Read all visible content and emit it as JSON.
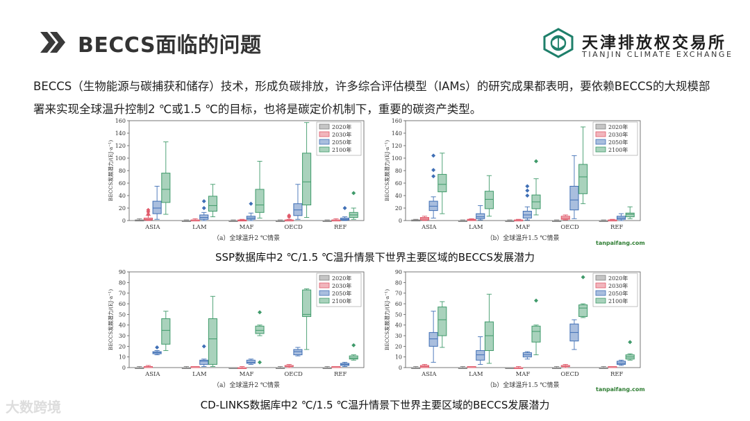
{
  "header": {
    "title": "BECCS面临的问题",
    "org_cn": "天津排放权交易所",
    "org_en": "TIANJIN CLIMATE EXCHANGE"
  },
  "intro": "BECCS（生物能源与碳捕获和储存）技术，形成负碳排放，许多综合评估模型（IAMs）的研究成果都表明，要依赖BECCS的大规模部署来实现全球温升控制2 ℃或1.5 ℃的目标，也将是碳定价机制下，重要的碳资产类型。",
  "captions": {
    "ssp": "SSP数据库中2 ℃/1.5 ℃温升情景下世界主要区域的BECCS发展潜力",
    "cdlinks": "CD-LINKS数据库中2 ℃/1.5 ℃温升情景下世界主要区域的BECCS发展潜力"
  },
  "watermark": "大数跨境",
  "site_mark": "tanpaifang.com",
  "colors": {
    "2020年": "#7f7f7f",
    "2030年": "#e05a6a",
    "2050年": "#3f6fb5",
    "2100年": "#3f9a6a"
  },
  "chart_data": [
    {
      "type": "box",
      "sublabel": "（a）全球温升2 ℃情景",
      "ylabel": "BECCS发展潜力/(EJ·a⁻¹)",
      "ylim": [
        0,
        160
      ],
      "yticks": [
        0,
        20,
        40,
        60,
        80,
        100,
        120,
        140,
        160
      ],
      "categories": [
        "ASIA",
        "LAM",
        "MAF",
        "OECD",
        "REF"
      ],
      "legend": [
        "2020年",
        "2030年",
        "2050年",
        "2100年"
      ],
      "series": [
        {
          "name": "2020年",
          "boxes": [
            [
              0,
              0,
              0,
              1,
              3
            ],
            [
              0,
              0,
              0,
              0,
              1
            ],
            [
              0,
              0,
              0,
              0,
              1
            ],
            [
              0,
              0,
              0,
              0,
              1
            ],
            [
              0,
              0,
              0,
              0,
              1
            ]
          ]
        },
        {
          "name": "2030年",
          "boxes": [
            [
              0,
              1,
              2,
              4,
              8
            ],
            [
              0,
              0,
              1,
              1,
              3
            ],
            [
              0,
              0,
              0,
              1,
              2
            ],
            [
              0,
              0,
              1,
              1,
              2
            ],
            [
              0,
              0,
              1,
              1,
              3
            ]
          ],
          "outliers": [
            [
              14,
              10,
              17
            ],
            [],
            [],
            [
              6,
              8
            ],
            []
          ]
        },
        {
          "name": "2050年",
          "boxes": [
            [
              2,
              11,
              20,
              31,
              55
            ],
            [
              0,
              2,
              5,
              9,
              13
            ],
            [
              0,
              2,
              4,
              7,
              12
            ],
            [
              2,
              8,
              17,
              27,
              58
            ],
            [
              0,
              1,
              2,
              4,
              6
            ]
          ],
          "outliers": [
            [],
            [
              20,
              31
            ],
            [
              27
            ],
            [],
            [
              20
            ]
          ]
        },
        {
          "name": "2100年",
          "boxes": [
            [
              10,
              29,
              50,
              76,
              126
            ],
            [
              6,
              15,
              24,
              39,
              58
            ],
            [
              4,
              13,
              25,
              50,
              95
            ],
            [
              5,
              25,
              62,
              108,
              157
            ],
            [
              2,
              5,
              9,
              13,
              20
            ]
          ],
          "outliers": [
            [],
            [],
            [],
            [],
            [
              44
            ]
          ]
        }
      ]
    },
    {
      "type": "box",
      "sublabel": "（b）全球温升1.5 ℃情景",
      "ylabel": "BECCS发展潜力/(EJ·a⁻¹)",
      "ylim": [
        0,
        160
      ],
      "yticks": [
        0,
        20,
        40,
        60,
        80,
        100,
        120,
        140,
        160
      ],
      "categories": [
        "ASIA",
        "LAM",
        "MAF",
        "OECD",
        "REF"
      ],
      "legend": [
        "2020年",
        "2030年",
        "2050年",
        "2100年"
      ],
      "series": [
        {
          "name": "2020年",
          "boxes": [
            [
              0,
              0,
              0,
              1,
              2
            ],
            [
              0,
              0,
              0,
              0,
              1
            ],
            [
              0,
              0,
              0,
              0,
              1
            ],
            [
              0,
              0,
              0,
              0,
              1
            ],
            [
              0,
              0,
              0,
              0,
              1
            ]
          ]
        },
        {
          "name": "2030年",
          "boxes": [
            [
              0,
              1,
              3,
              5,
              7
            ],
            [
              0,
              0,
              1,
              2,
              3
            ],
            [
              0,
              0,
              1,
              1,
              2
            ],
            [
              1,
              2,
              4,
              7,
              9
            ],
            [
              0,
              0,
              1,
              1,
              2
            ]
          ]
        },
        {
          "name": "2050年",
          "boxes": [
            [
              4,
              16,
              23,
              31,
              38
            ],
            [
              1,
              3,
              6,
              11,
              24
            ],
            [
              1,
              4,
              9,
              15,
              22
            ],
            [
              3,
              17,
              33,
              55,
              104
            ],
            [
              0,
              2,
              4,
              7,
              11
            ]
          ],
          "outliers": [
            [
              104,
              81,
              71
            ],
            [],
            [
              55,
              48,
              40
            ],
            [],
            []
          ]
        },
        {
          "name": "2100年",
          "boxes": [
            [
              11,
              46,
              58,
              74,
              108
            ],
            [
              7,
              19,
              34,
              47,
              72
            ],
            [
              9,
              19,
              30,
              41,
              67
            ],
            [
              27,
              43,
              70,
              90,
              150
            ],
            [
              3,
              6,
              10,
              12,
              22
            ]
          ],
          "outliers": [
            [],
            [],
            [
              95
            ],
            [],
            []
          ]
        }
      ]
    },
    {
      "type": "box",
      "sublabel": "（a）全球温升2 ℃情景",
      "ylabel": "BECCS发展潜力/(EJ·a⁻¹)",
      "ylim": [
        0,
        90
      ],
      "yticks": [
        0,
        10,
        20,
        30,
        40,
        50,
        60,
        70,
        80,
        90
      ],
      "categories": [
        "ASIA",
        "LAM",
        "MAF",
        "OECD",
        "REF"
      ],
      "legend": [
        "2020年",
        "2030年",
        "2050年",
        "2100年"
      ],
      "series": [
        {
          "name": "2020年",
          "boxes": [
            [
              0,
              0,
              0,
              0,
              1
            ],
            [
              0,
              0,
              0,
              0,
              1
            ],
            [
              0,
              0,
              0,
              0,
              0
            ],
            [
              0,
              0,
              0,
              0,
              1
            ],
            [
              0,
              0,
              0,
              0,
              1
            ]
          ]
        },
        {
          "name": "2030年",
          "boxes": [
            [
              0,
              0,
              1,
              1,
              2
            ],
            [
              0,
              0,
              0,
              1,
              1
            ],
            [
              0,
              0,
              0,
              0,
              1
            ],
            [
              0,
              1,
              1,
              2,
              3
            ],
            [
              0,
              0,
              0,
              1,
              1
            ]
          ]
        },
        {
          "name": "2050年",
          "boxes": [
            [
              12,
              13,
              14,
              15,
              16
            ],
            [
              1,
              3,
              6,
              7,
              8
            ],
            [
              3,
              4,
              5,
              7,
              8
            ],
            [
              11,
              12,
              15,
              17,
              19
            ],
            [
              1,
              2,
              3,
              4,
              5
            ]
          ],
          "outliers": [
            [
              19
            ],
            [
              20
            ],
            [],
            [],
            []
          ]
        },
        {
          "name": "2100年",
          "boxes": [
            [
              16,
              22,
              35,
              46,
              53
            ],
            [
              1,
              3,
              27,
              46,
              67
            ],
            [
              30,
              32,
              35,
              39,
              40
            ],
            [
              17,
              48,
              50,
              73,
              74
            ],
            [
              7,
              8,
              9,
              11,
              12
            ]
          ],
          "outliers": [
            [],
            [],
            [
              52,
              5
            ],
            [],
            [
              21
            ]
          ]
        }
      ]
    },
    {
      "type": "box",
      "sublabel": "（b）全球温升1.5 ℃情景",
      "ylabel": "BECCS发展潜力/(EJ·a⁻¹)",
      "ylim": [
        0,
        90
      ],
      "yticks": [
        0,
        10,
        20,
        30,
        40,
        50,
        60,
        70,
        80,
        90
      ],
      "categories": [
        "ASIA",
        "LAM",
        "MAF",
        "OECD",
        "REF"
      ],
      "legend": [
        "2020年",
        "2030年",
        "2050年",
        "2100年"
      ],
      "series": [
        {
          "name": "2020年",
          "boxes": [
            [
              0,
              0,
              0,
              0,
              1
            ],
            [
              0,
              0,
              0,
              0,
              1
            ],
            [
              0,
              0,
              0,
              0,
              0
            ],
            [
              0,
              0,
              0,
              0,
              1
            ],
            [
              0,
              0,
              0,
              0,
              1
            ]
          ]
        },
        {
          "name": "2030年",
          "boxes": [
            [
              0,
              0,
              1,
              2,
              3
            ],
            [
              0,
              0,
              0,
              1,
              1
            ],
            [
              0,
              0,
              0,
              0,
              1
            ],
            [
              0,
              1,
              1,
              2,
              3
            ],
            [
              0,
              0,
              0,
              1,
              1
            ]
          ]
        },
        {
          "name": "2050年",
          "boxes": [
            [
              5,
              20,
              27,
              33,
              53
            ],
            [
              3,
              7,
              12,
              16,
              29
            ],
            [
              8,
              10,
              12,
              14,
              15
            ],
            [
              17,
              25,
              33,
              41,
              45
            ],
            [
              2,
              3,
              4,
              6,
              7
            ]
          ]
        },
        {
          "name": "2100年",
          "boxes": [
            [
              19,
              30,
              45,
              57,
              62
            ],
            [
              4,
              16,
              30,
              43,
              69
            ],
            [
              12,
              24,
              34,
              39,
              40
            ],
            [
              47,
              48,
              56,
              59,
              60
            ],
            [
              7,
              8,
              10,
              12,
              13
            ]
          ],
          "outliers": [
            [],
            [],
            [
              63
            ],
            [
              85
            ],
            [
              24
            ]
          ]
        }
      ]
    }
  ]
}
